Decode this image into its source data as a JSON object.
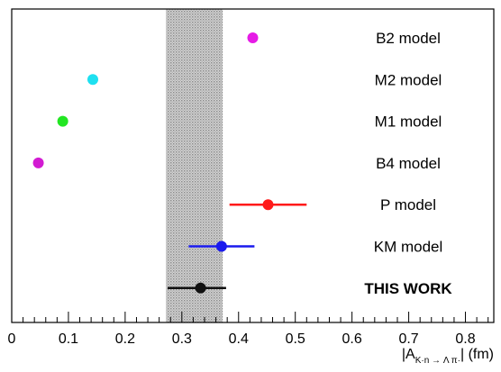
{
  "chart_data": {
    "type": "scatter",
    "title": "",
    "xlabel": "|A_{K⁻n → Λ π⁻}| (fm)",
    "xlabel_parts": {
      "prefix": "|A",
      "subscript": "K·n → Λ π·",
      "suffix": "| (fm)"
    },
    "xlim": [
      0,
      0.85
    ],
    "x_ticks": [
      "0",
      "0.1",
      "0.2",
      "0.3",
      "0.4",
      "0.5",
      "0.6",
      "0.7",
      "0.8"
    ],
    "x_tick_values": [
      0,
      0.1,
      0.2,
      0.3,
      0.4,
      0.5,
      0.6,
      0.7,
      0.8
    ],
    "band": {
      "xmin": 0.272,
      "xmax": 0.372,
      "style": "hatched-gray"
    },
    "grid": false,
    "points": [
      {
        "label": "B2 model",
        "x": 0.425,
        "xerr_low": null,
        "xerr_high": null,
        "color": "#e61be6",
        "bold": false
      },
      {
        "label": "M2 model",
        "x": 0.143,
        "xerr_low": null,
        "xerr_high": null,
        "color": "#1ee0f0",
        "bold": false
      },
      {
        "label": "M1 model",
        "x": 0.09,
        "xerr_low": null,
        "xerr_high": null,
        "color": "#22e622",
        "bold": false
      },
      {
        "label": "B4 model",
        "x": 0.047,
        "xerr_low": null,
        "xerr_high": null,
        "color": "#d21bd2",
        "bold": false
      },
      {
        "label": "P model",
        "x": 0.452,
        "xerr_low": 0.384,
        "xerr_high": 0.52,
        "color": "#ff1a1a",
        "bold": false
      },
      {
        "label": "KM model",
        "x": 0.37,
        "xerr_low": 0.312,
        "xerr_high": 0.428,
        "color": "#1a1aee",
        "bold": false
      },
      {
        "label": "THIS WORK",
        "x": 0.333,
        "xerr_low": 0.275,
        "xerr_high": 0.378,
        "color": "#111111",
        "bold": true
      }
    ]
  }
}
